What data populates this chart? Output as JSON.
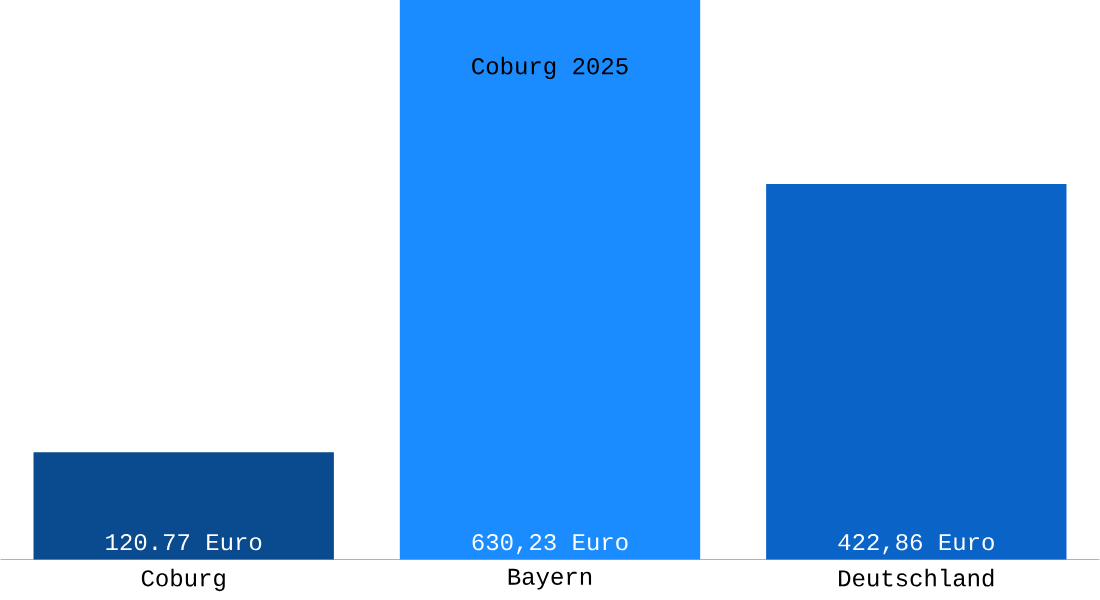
{
  "chart_data": {
    "type": "bar",
    "title": "Coburg 2025",
    "categories": [
      "Coburg",
      "Bayern",
      "Deutschland"
    ],
    "values": [
      120.77,
      630.23,
      422.86
    ],
    "colors": [
      "#0a4a8e",
      "#1a8cff",
      "#0a64c8"
    ],
    "value_labels": [
      "120.77 Euro",
      "630,23 Euro",
      "422,86 Euro"
    ]
  }
}
